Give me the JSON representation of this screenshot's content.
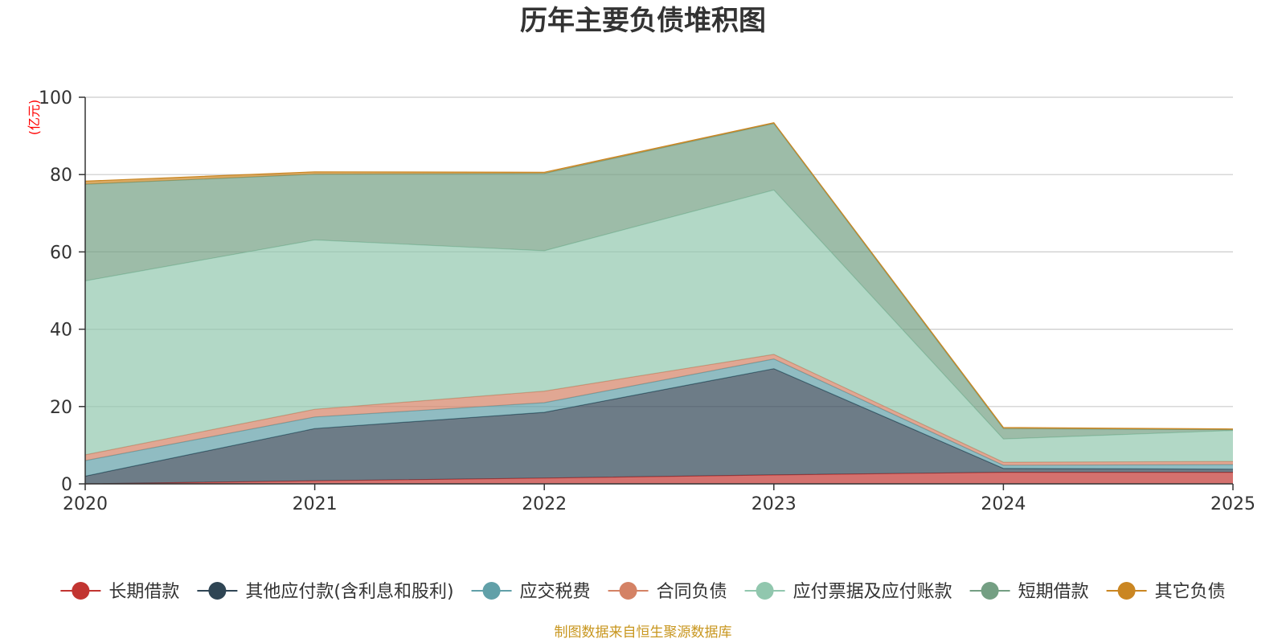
{
  "chart_data": {
    "type": "area",
    "stacked": true,
    "title": "历年主要负债堆积图",
    "unit_label": "(亿元)",
    "x": [
      "2020",
      "2021",
      "2022",
      "2023",
      "2024",
      "2025"
    ],
    "ylim": [
      0,
      100
    ],
    "yticks": [
      0,
      20,
      40,
      60,
      80,
      100
    ],
    "grid": true,
    "legend_position": "bottom",
    "series": [
      {
        "name": "长期借款",
        "color": "#c23531",
        "values": [
          0.0,
          0.8,
          1.5,
          2.3,
          3.0,
          3.0
        ]
      },
      {
        "name": "其他应付款(含利息和股利)",
        "color": "#2f4554",
        "values": [
          2.0,
          13.5,
          17.0,
          27.5,
          1.0,
          0.8
        ]
      },
      {
        "name": "应交税费",
        "color": "#61a0a8",
        "values": [
          4.0,
          3.0,
          2.5,
          2.5,
          0.8,
          1.2
        ]
      },
      {
        "name": "合同负债",
        "color": "#d48265",
        "values": [
          1.5,
          2.0,
          3.0,
          1.2,
          0.8,
          0.8
        ]
      },
      {
        "name": "应付票据及应付账款",
        "color": "#91c7ae",
        "values": [
          45.0,
          43.8,
          36.3,
          42.5,
          6.0,
          8.0
        ]
      },
      {
        "name": "短期借款",
        "color": "#749f83",
        "values": [
          25.0,
          17.0,
          20.0,
          17.2,
          2.7,
          0.2
        ]
      },
      {
        "name": "其它负债",
        "color": "#ca8622",
        "values": [
          0.8,
          0.6,
          0.3,
          0.2,
          0.3,
          0.2
        ]
      }
    ]
  },
  "footer": {
    "source_note": "制图数据来自恒生聚源数据库",
    "source_color": "#c8961e"
  }
}
